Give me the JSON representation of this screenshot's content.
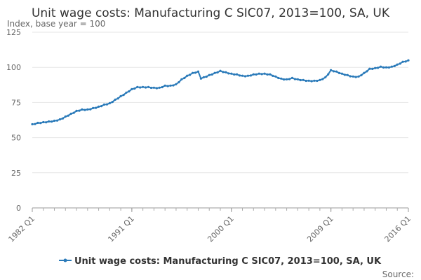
{
  "chart_data": {
    "type": "line",
    "title": "Unit wage costs: Manufacturing C SIC07, 2013=100, SA, UK",
    "subtitle": "Index, base year = 100",
    "xlabel": "",
    "ylabel": "",
    "ylim": [
      0,
      125
    ],
    "yticks": [
      0,
      25,
      50,
      75,
      100,
      125
    ],
    "xlim": [
      1982.0,
      2016.0
    ],
    "xticks": [
      {
        "label": "1982 Q1",
        "x": 1982.0
      },
      {
        "label": "1991 Q1",
        "x": 1991.0
      },
      {
        "label": "2000 Q1",
        "x": 2000.0
      },
      {
        "label": "2009 Q1",
        "x": 2009.0
      },
      {
        "label": "2016 Q1",
        "x": 2016.0
      }
    ],
    "grid": true,
    "legend_position": "bottom",
    "source_label": "Source:",
    "series": [
      {
        "name": "Unit wage costs: Manufacturing C SIC07, 2013=100, SA, UK",
        "color": "#2a7ab9",
        "points": [
          [
            1982.0,
            59.5
          ],
          [
            1982.5,
            60.5
          ],
          [
            1983.0,
            61.0
          ],
          [
            1983.5,
            61.5
          ],
          [
            1984.0,
            62.0
          ],
          [
            1984.5,
            63.0
          ],
          [
            1985.0,
            65.0
          ],
          [
            1985.5,
            67.0
          ],
          [
            1986.0,
            69.0
          ],
          [
            1986.5,
            70.0
          ],
          [
            1987.0,
            70.0
          ],
          [
            1987.5,
            71.0
          ],
          [
            1988.0,
            72.0
          ],
          [
            1988.5,
            73.5
          ],
          [
            1989.0,
            74.5
          ],
          [
            1989.5,
            77.0
          ],
          [
            1990.0,
            79.5
          ],
          [
            1990.5,
            82.0
          ],
          [
            1991.0,
            84.5
          ],
          [
            1991.5,
            86.0
          ],
          [
            1992.0,
            86.0
          ],
          [
            1992.5,
            86.0
          ],
          [
            1993.0,
            85.5
          ],
          [
            1993.5,
            85.5
          ],
          [
            1994.0,
            87.0
          ],
          [
            1994.5,
            87.0
          ],
          [
            1995.0,
            88.0
          ],
          [
            1995.5,
            91.5
          ],
          [
            1996.0,
            94.0
          ],
          [
            1996.5,
            96.0
          ],
          [
            1997.0,
            97.0
          ],
          [
            1997.25,
            92.0
          ],
          [
            1997.5,
            93.0
          ],
          [
            1998.0,
            94.5
          ],
          [
            1998.5,
            96.0
          ],
          [
            1999.0,
            97.5
          ],
          [
            1999.5,
            96.5
          ],
          [
            2000.0,
            95.5
          ],
          [
            2000.5,
            95.0
          ],
          [
            2001.0,
            94.0
          ],
          [
            2001.5,
            94.0
          ],
          [
            2002.0,
            95.0
          ],
          [
            2002.5,
            95.5
          ],
          [
            2003.0,
            95.5
          ],
          [
            2003.5,
            95.0
          ],
          [
            2004.0,
            93.5
          ],
          [
            2004.5,
            92.0
          ],
          [
            2005.0,
            91.5
          ],
          [
            2005.5,
            92.5
          ],
          [
            2006.0,
            91.5
          ],
          [
            2006.5,
            91.0
          ],
          [
            2007.0,
            90.5
          ],
          [
            2007.5,
            90.5
          ],
          [
            2008.0,
            91.0
          ],
          [
            2008.5,
            93.0
          ],
          [
            2008.75,
            95.0
          ],
          [
            2009.0,
            98.0
          ],
          [
            2009.5,
            97.0
          ],
          [
            2010.0,
            95.5
          ],
          [
            2010.5,
            94.5
          ],
          [
            2011.0,
            93.5
          ],
          [
            2011.5,
            93.5
          ],
          [
            2012.0,
            96.0
          ],
          [
            2012.5,
            99.0
          ],
          [
            2013.0,
            99.5
          ],
          [
            2013.5,
            100.5
          ],
          [
            2014.0,
            100.0
          ],
          [
            2014.5,
            100.5
          ],
          [
            2015.0,
            102.0
          ],
          [
            2015.5,
            104.0
          ],
          [
            2016.0,
            105.0
          ]
        ]
      }
    ]
  }
}
